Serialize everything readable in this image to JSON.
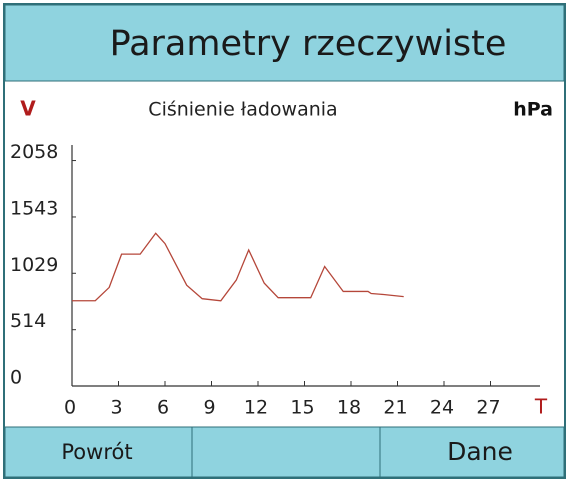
{
  "header": {
    "title": "Parametry rzeczywiste"
  },
  "chart_data": {
    "type": "line",
    "title": "Ciśnienie ładowania",
    "y_label": "V",
    "unit": "hPa",
    "x_label": "T",
    "x": [
      0,
      1.5,
      2.4,
      3.2,
      4.4,
      5.4,
      6,
      7.4,
      8.4,
      9.6,
      10.6,
      11.4,
      12.4,
      13.3,
      15.4,
      16.3,
      17.5,
      19.1,
      19.3,
      20.1,
      21.4
    ],
    "series": [
      {
        "color": "#b5473a",
        "values": [
          778,
          778,
          900,
          1204,
          1204,
          1394,
          1300,
          920,
          797,
          778,
          967,
          1242,
          939,
          806,
          806,
          1091,
          863,
          863,
          844,
          835,
          816
        ]
      }
    ],
    "xlim": [
      0,
      30
    ],
    "xticks": [
      0,
      3,
      6,
      9,
      12,
      15,
      18,
      21,
      24,
      27
    ],
    "ylim": [
      0,
      2200
    ],
    "yticks": [
      0,
      514,
      1029,
      1543,
      2058
    ]
  },
  "buttons": [
    "Powrót",
    "Dane"
  ]
}
